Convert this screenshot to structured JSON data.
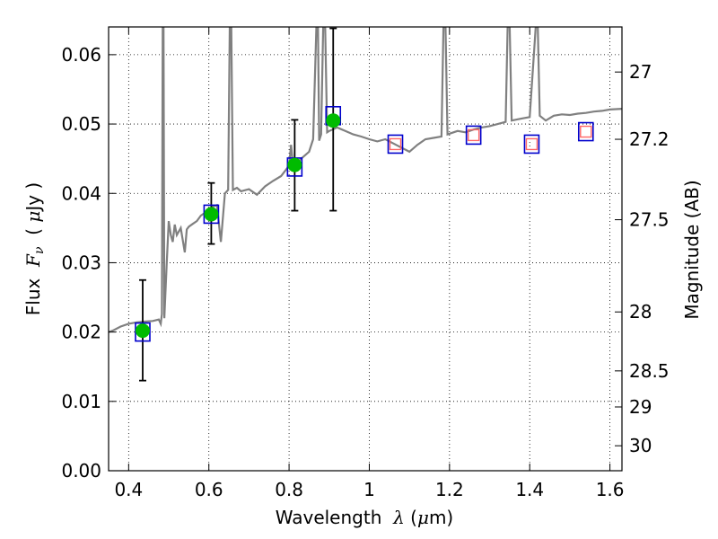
{
  "chart_data": {
    "type": "scatter",
    "xlabel_prefix": "Wavelength  ",
    "xlabel_symbol": "λ",
    "xlabel_suffix": " (",
    "xlabel_mu": "μ",
    "xlabel_unit": "m)",
    "ylabel_prefix": "Flux  ",
    "ylabel_symbol": "F",
    "ylabel_sub": "ν",
    "ylabel_suffix": "  ( ",
    "ylabel_mu": "μ",
    "ylabel_unit": "Jy )",
    "y2label": "Magnitude (AB)",
    "xlim": [
      0.35,
      1.63
    ],
    "ylim": [
      0.0,
      0.064
    ],
    "x_ticks": [
      0.4,
      0.6,
      0.8,
      1.0,
      1.2,
      1.4,
      1.6
    ],
    "x_tick_labels": [
      "0.4",
      "0.6",
      "0.8",
      "1",
      "1.2",
      "1.4",
      "1.6"
    ],
    "y_ticks": [
      0.0,
      0.01,
      0.02,
      0.03,
      0.04,
      0.05,
      0.06
    ],
    "y_tick_labels": [
      "0.00",
      "0.01",
      "0.02",
      "0.03",
      "0.04",
      "0.05",
      "0.06"
    ],
    "mag_ticks": [
      {
        "label": "27",
        "flux": 0.0575
      },
      {
        "label": "27.2",
        "flux": 0.0478
      },
      {
        "label": "27.5",
        "flux": 0.0362
      },
      {
        "label": "28",
        "flux": 0.0229
      },
      {
        "label": "28.5",
        "flux": 0.0144
      },
      {
        "label": "29",
        "flux": 0.0092
      },
      {
        "label": "30",
        "flux": 0.0036
      }
    ],
    "grid": true,
    "colors": {
      "model": "#808080",
      "observed": "#00bb00",
      "model_box": "#0000cc",
      "predicted_box": "#ff6666",
      "errorbar": "#000000"
    },
    "model_spectrum": [
      [
        0.35,
        0.02
      ],
      [
        0.36,
        0.0202
      ],
      [
        0.38,
        0.0208
      ],
      [
        0.4,
        0.0212
      ],
      [
        0.42,
        0.0214
      ],
      [
        0.44,
        0.0215
      ],
      [
        0.46,
        0.0216
      ],
      [
        0.475,
        0.0218
      ],
      [
        0.48,
        0.0212
      ],
      [
        0.483,
        0.0226
      ],
      [
        0.485,
        0.064
      ],
      [
        0.487,
        0.064
      ],
      [
        0.489,
        0.022
      ],
      [
        0.495,
        0.03
      ],
      [
        0.5,
        0.036
      ],
      [
        0.505,
        0.034
      ],
      [
        0.51,
        0.033
      ],
      [
        0.515,
        0.0355
      ],
      [
        0.52,
        0.034
      ],
      [
        0.53,
        0.035
      ],
      [
        0.54,
        0.0315
      ],
      [
        0.545,
        0.0348
      ],
      [
        0.55,
        0.0352
      ],
      [
        0.56,
        0.0356
      ],
      [
        0.57,
        0.036
      ],
      [
        0.58,
        0.0368
      ],
      [
        0.59,
        0.0372
      ],
      [
        0.6,
        0.0376
      ],
      [
        0.61,
        0.0381
      ],
      [
        0.62,
        0.0383
      ],
      [
        0.63,
        0.033
      ],
      [
        0.64,
        0.04
      ],
      [
        0.648,
        0.0405
      ],
      [
        0.652,
        0.064
      ],
      [
        0.656,
        0.064
      ],
      [
        0.66,
        0.0405
      ],
      [
        0.67,
        0.0408
      ],
      [
        0.68,
        0.0403
      ],
      [
        0.7,
        0.0406
      ],
      [
        0.72,
        0.0398
      ],
      [
        0.74,
        0.041
      ],
      [
        0.76,
        0.0418
      ],
      [
        0.78,
        0.0425
      ],
      [
        0.8,
        0.044
      ],
      [
        0.805,
        0.047
      ],
      [
        0.81,
        0.0438
      ],
      [
        0.83,
        0.045
      ],
      [
        0.85,
        0.046
      ],
      [
        0.86,
        0.0478
      ],
      [
        0.868,
        0.064
      ],
      [
        0.872,
        0.064
      ],
      [
        0.875,
        0.0476
      ],
      [
        0.88,
        0.0485
      ],
      [
        0.885,
        0.064
      ],
      [
        0.89,
        0.064
      ],
      [
        0.895,
        0.0488
      ],
      [
        0.9,
        0.049
      ],
      [
        0.92,
        0.0495
      ],
      [
        0.94,
        0.049
      ],
      [
        0.96,
        0.0485
      ],
      [
        0.98,
        0.0482
      ],
      [
        1.0,
        0.0478
      ],
      [
        1.02,
        0.0475
      ],
      [
        1.04,
        0.0478
      ],
      [
        1.06,
        0.0472
      ],
      [
        1.08,
        0.0466
      ],
      [
        1.1,
        0.046
      ],
      [
        1.12,
        0.047
      ],
      [
        1.14,
        0.0478
      ],
      [
        1.16,
        0.048
      ],
      [
        1.18,
        0.0482
      ],
      [
        1.185,
        0.064
      ],
      [
        1.19,
        0.064
      ],
      [
        1.195,
        0.0485
      ],
      [
        1.22,
        0.049
      ],
      [
        1.24,
        0.0488
      ],
      [
        1.26,
        0.0492
      ],
      [
        1.28,
        0.0495
      ],
      [
        1.3,
        0.0497
      ],
      [
        1.32,
        0.05
      ],
      [
        1.34,
        0.0503
      ],
      [
        1.345,
        0.064
      ],
      [
        1.35,
        0.064
      ],
      [
        1.355,
        0.0505
      ],
      [
        1.38,
        0.0508
      ],
      [
        1.4,
        0.051
      ],
      [
        1.415,
        0.064
      ],
      [
        1.42,
        0.064
      ],
      [
        1.425,
        0.0512
      ],
      [
        1.44,
        0.0505
      ],
      [
        1.46,
        0.0512
      ],
      [
        1.48,
        0.0514
      ],
      [
        1.5,
        0.0513
      ],
      [
        1.52,
        0.0515
      ],
      [
        1.54,
        0.0516
      ],
      [
        1.56,
        0.0518
      ],
      [
        1.58,
        0.0519
      ],
      [
        1.6,
        0.0521
      ],
      [
        1.63,
        0.0522
      ]
    ],
    "observed_points": [
      {
        "x": 0.435,
        "y": 0.0202,
        "yerr_low": 0.013,
        "yerr_high": 0.0275
      },
      {
        "x": 0.606,
        "y": 0.037,
        "yerr_low": 0.0327,
        "yerr_high": 0.0415
      },
      {
        "x": 0.814,
        "y": 0.0441,
        "yerr_low": 0.0375,
        "yerr_high": 0.0506
      },
      {
        "x": 0.91,
        "y": 0.0505,
        "yerr_low": 0.0375,
        "yerr_high": 0.0638
      }
    ],
    "model_boxes": [
      {
        "x": 0.435,
        "y": 0.02
      },
      {
        "x": 0.606,
        "y": 0.037
      },
      {
        "x": 0.814,
        "y": 0.0438
      },
      {
        "x": 0.91,
        "y": 0.0512
      },
      {
        "x": 1.065,
        "y": 0.0471
      },
      {
        "x": 1.26,
        "y": 0.0484
      },
      {
        "x": 1.405,
        "y": 0.0471
      },
      {
        "x": 1.54,
        "y": 0.0489
      }
    ],
    "predicted_points": [
      {
        "x": 1.065,
        "y": 0.0471
      },
      {
        "x": 1.26,
        "y": 0.0484
      },
      {
        "x": 1.405,
        "y": 0.0471
      },
      {
        "x": 1.54,
        "y": 0.0489
      }
    ]
  }
}
